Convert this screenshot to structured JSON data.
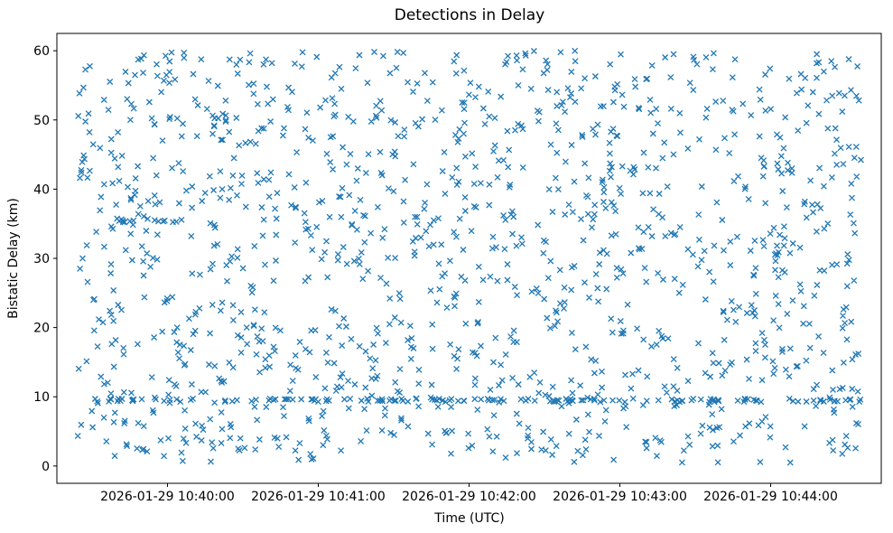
{
  "figure": {
    "title": "Detections in Delay",
    "xlabel": "Time (UTC)",
    "ylabel": "Bistatic Delay (km)"
  },
  "chart_data": {
    "type": "scatter",
    "title": "Detections in Delay",
    "xlabel": "Time (UTC)",
    "ylabel": "Bistatic Delay (km)",
    "marker": "x",
    "marker_color": "#1f77b4",
    "background": "#ffffff",
    "grid": false,
    "legend": "none",
    "x_base_utc": "2026-01-29 10:39:00",
    "xlim_seconds": [
      16,
      344
    ],
    "ylim": [
      -2.5,
      62.5
    ],
    "x_ticks": [
      {
        "seconds": 60,
        "label": "2026-01-29 10:40:00"
      },
      {
        "seconds": 120,
        "label": "2026-01-29 10:41:00"
      },
      {
        "seconds": 180,
        "label": "2026-01-29 10:42:00"
      },
      {
        "seconds": 240,
        "label": "2026-01-29 10:43:00"
      },
      {
        "seconds": 300,
        "label": "2026-01-29 10:44:00"
      }
    ],
    "y_ticks": [
      0,
      10,
      20,
      30,
      40,
      50,
      60
    ],
    "points_spec": {
      "seed": 42,
      "n_uniform": 1350,
      "x_range_seconds": [
        24,
        336
      ],
      "y_range_km": [
        0.5,
        60
      ],
      "bands": [
        {
          "y_center_km": 9.5,
          "y_jitter_km": 0.25,
          "x_range_seconds": [
            24,
            336
          ],
          "n": 140
        },
        {
          "y_center_km": 35.5,
          "y_jitter_km": 0.3,
          "x_range_seconds": [
            38,
            72
          ],
          "n": 15
        }
      ]
    }
  }
}
